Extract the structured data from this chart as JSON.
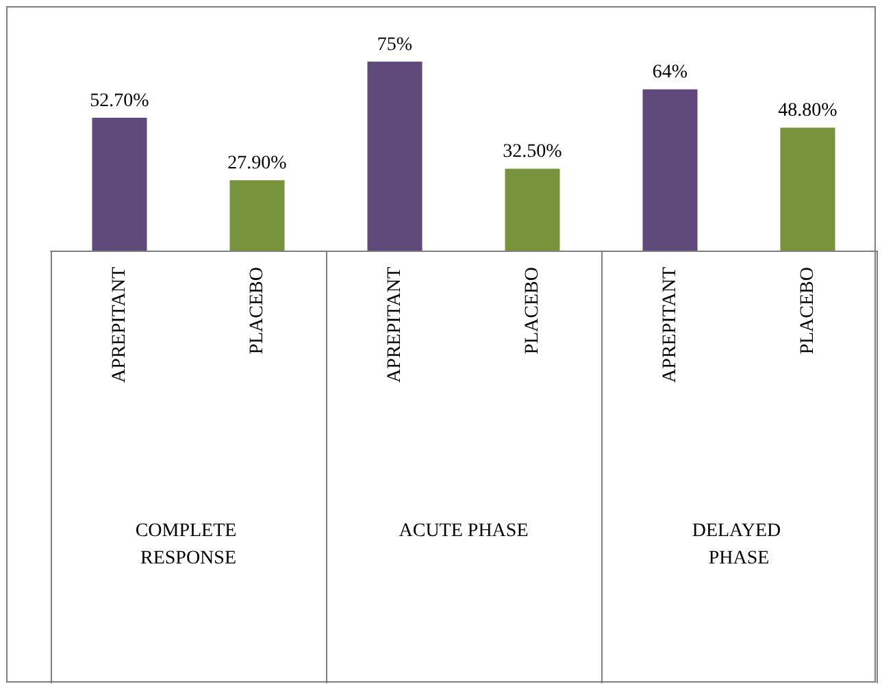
{
  "chart_data": {
    "type": "bar",
    "categories": [
      "APREPITANT",
      "PLACEBO",
      "APREPITANT",
      "PLACEBO",
      "APREPITANT",
      "PLACEBO"
    ],
    "values": [
      52.7,
      27.9,
      75,
      32.5,
      64,
      48.8
    ],
    "colors": [
      "#604a7b",
      "#77933c",
      "#604a7b",
      "#77933c",
      "#604a7b",
      "#77933c"
    ],
    "value_labels": [
      "52.70%",
      "27.90%",
      "75%",
      "32.50%",
      "64%",
      "48.80%"
    ],
    "annotations": [
      "COMPLETE RESPONSE",
      "ACUTE PHASE",
      "DELAYED PHASE"
    ]
  }
}
